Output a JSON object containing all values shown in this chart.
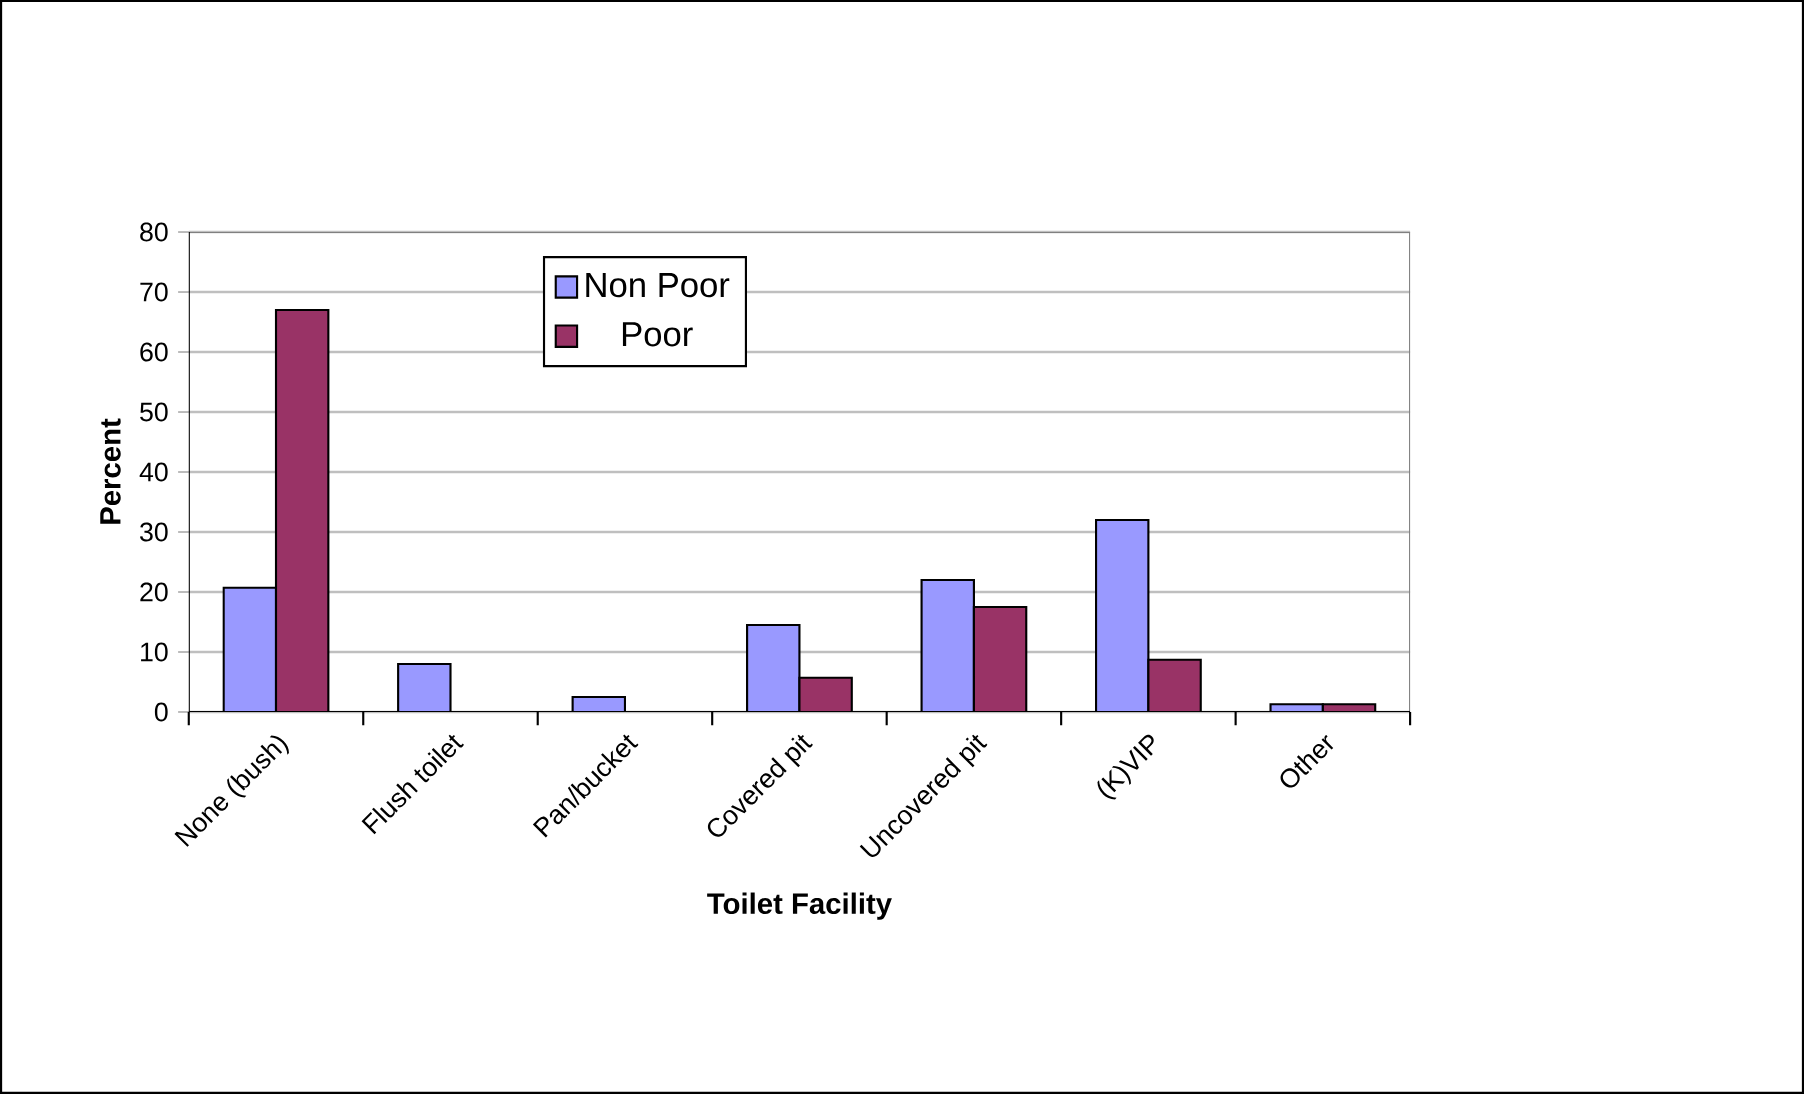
{
  "chart_data": {
    "type": "bar",
    "xlabel": "Toilet Facility",
    "ylabel": "Percent",
    "categories": [
      "None (bush)",
      "Flush toilet",
      "Pan/bucket",
      "Covered pit",
      "Uncovered pit",
      "(K)VIP",
      "Other"
    ],
    "series": [
      {
        "name": "Non Poor",
        "color": "#9999ff",
        "values": [
          20.7,
          8,
          2.5,
          14.5,
          22,
          32,
          1.3
        ]
      },
      {
        "name": "Poor",
        "color": "#993366",
        "values": [
          67,
          0,
          0,
          5.7,
          17.5,
          8.7,
          1.3
        ]
      }
    ],
    "ylim": [
      0,
      80
    ],
    "yticks": [
      0,
      10,
      20,
      30,
      40,
      50,
      60,
      70,
      80
    ],
    "grid": "y",
    "legend": "top"
  }
}
